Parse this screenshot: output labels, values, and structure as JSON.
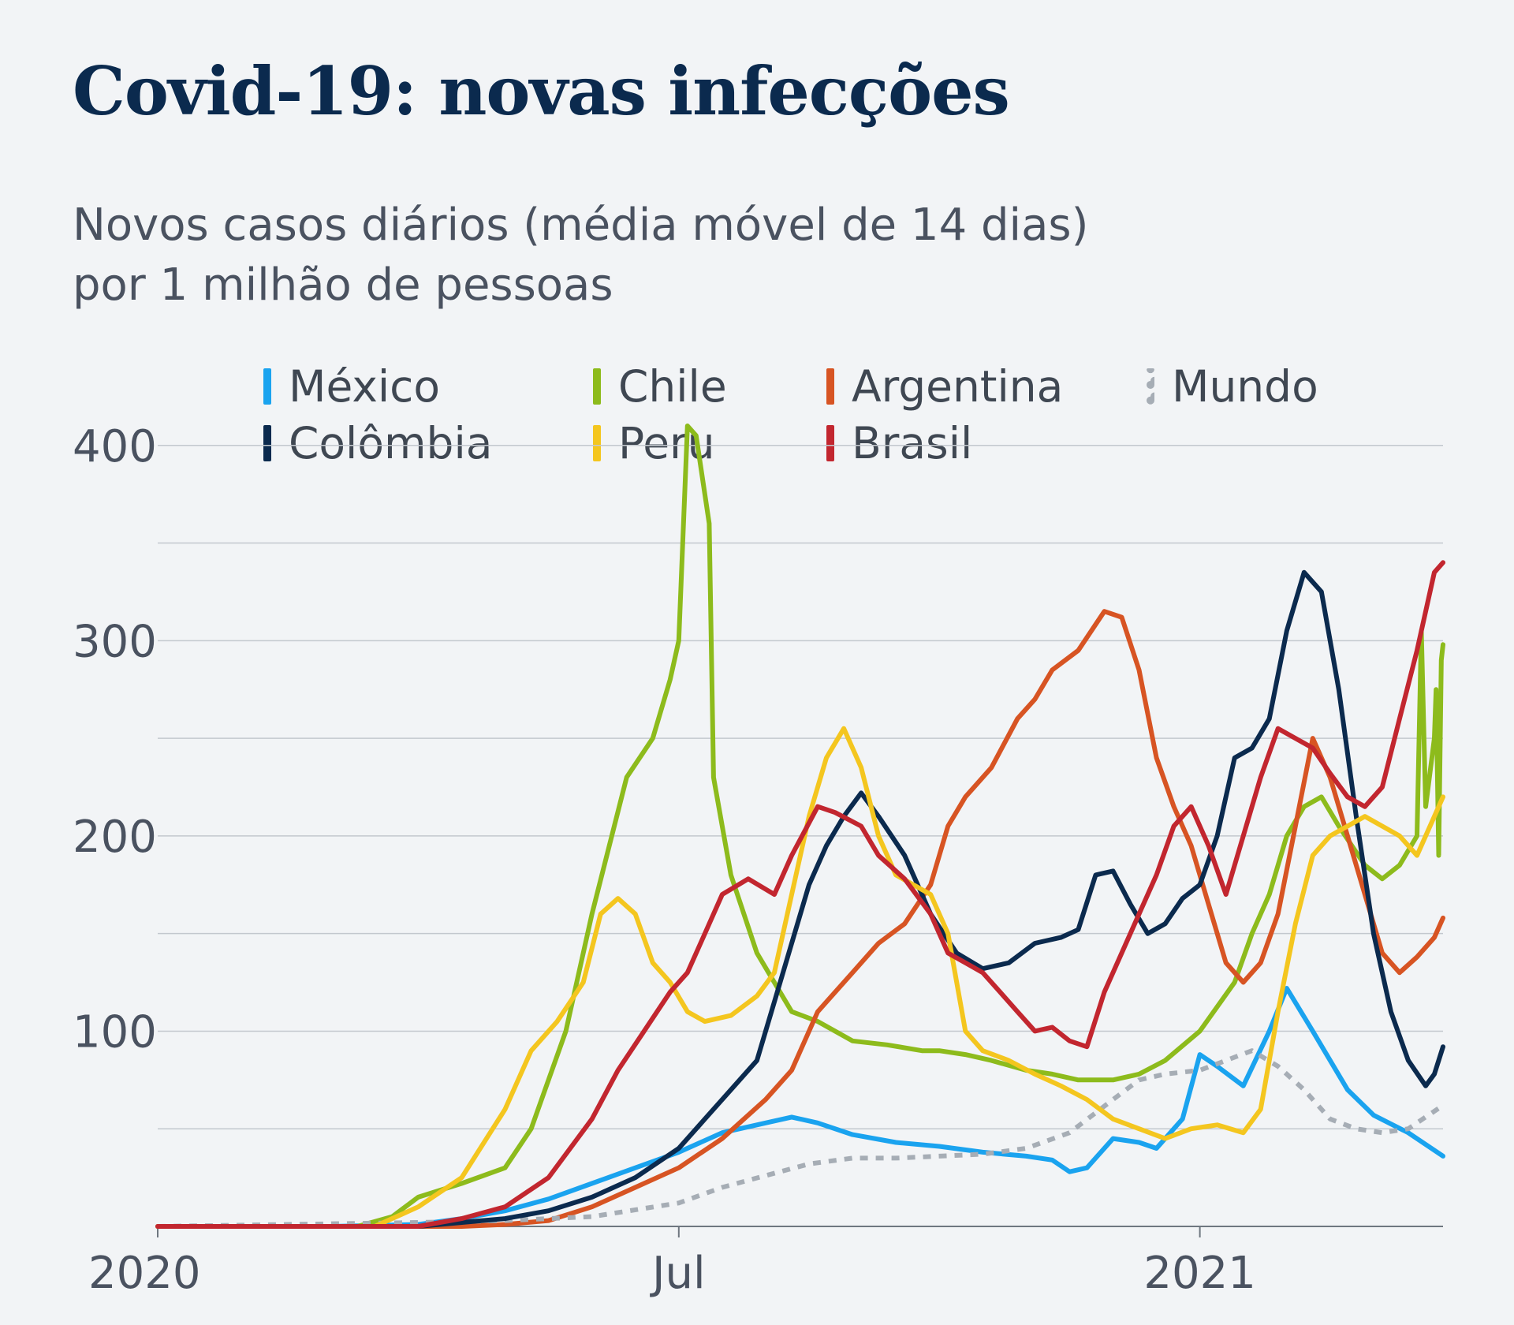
{
  "title": "Covid-19: novas infecções",
  "subtitle_line1": "Novos casos diários (média móvel de 14 dias)",
  "subtitle_line2": "por 1 milhão de pessoas",
  "chart_data": {
    "type": "line",
    "title": "Covid-19: novas infecções",
    "ylabel": "",
    "xlabel": "",
    "ylim": [
      0,
      410
    ],
    "xlim": [
      0,
      14.8
    ],
    "yticks": [
      100,
      200,
      300,
      400
    ],
    "gridlines": [
      50,
      100,
      150,
      200,
      250,
      300,
      350,
      400
    ],
    "xticks": [
      {
        "label": "2020",
        "x": 0
      },
      {
        "label": "Jul",
        "x": 6
      },
      {
        "label": "2021",
        "x": 12
      }
    ],
    "legend": "top",
    "series": [
      {
        "name": "México",
        "color": "#1aa3ef",
        "points": [
          [
            0,
            0
          ],
          [
            2,
            0
          ],
          [
            3,
            1
          ],
          [
            3.5,
            4
          ],
          [
            4,
            8
          ],
          [
            4.5,
            14
          ],
          [
            5,
            22
          ],
          [
            5.5,
            30
          ],
          [
            6,
            38
          ],
          [
            6.5,
            48
          ],
          [
            7,
            53
          ],
          [
            7.3,
            56
          ],
          [
            7.6,
            53
          ],
          [
            8,
            47
          ],
          [
            8.5,
            43
          ],
          [
            9,
            41
          ],
          [
            9.5,
            38
          ],
          [
            10,
            36
          ],
          [
            10.3,
            34
          ],
          [
            10.5,
            28
          ],
          [
            10.7,
            30
          ],
          [
            11,
            45
          ],
          [
            11.3,
            43
          ],
          [
            11.5,
            40
          ],
          [
            11.8,
            55
          ],
          [
            12,
            88
          ],
          [
            12.2,
            82
          ],
          [
            12.5,
            72
          ],
          [
            12.8,
            100
          ],
          [
            13,
            122
          ],
          [
            13.3,
            100
          ],
          [
            13.7,
            70
          ],
          [
            14,
            57
          ],
          [
            14.4,
            48
          ],
          [
            14.8,
            36
          ]
        ]
      },
      {
        "name": "Chile",
        "color": "#8dbb1c",
        "points": [
          [
            0,
            0
          ],
          [
            2.3,
            0
          ],
          [
            2.7,
            5
          ],
          [
            3,
            15
          ],
          [
            3.5,
            22
          ],
          [
            4,
            30
          ],
          [
            4.3,
            50
          ],
          [
            4.7,
            100
          ],
          [
            5,
            160
          ],
          [
            5.2,
            195
          ],
          [
            5.4,
            230
          ],
          [
            5.7,
            250
          ],
          [
            5.9,
            280
          ],
          [
            6,
            300
          ],
          [
            6.1,
            410
          ],
          [
            6.2,
            405
          ],
          [
            6.35,
            360
          ],
          [
            6.4,
            230
          ],
          [
            6.6,
            180
          ],
          [
            6.9,
            140
          ],
          [
            7.3,
            110
          ],
          [
            7.6,
            105
          ],
          [
            8,
            95
          ],
          [
            8.4,
            93
          ],
          [
            8.8,
            90
          ],
          [
            9,
            90
          ],
          [
            9.3,
            88
          ],
          [
            9.6,
            85
          ],
          [
            10,
            80
          ],
          [
            10.3,
            78
          ],
          [
            10.6,
            75
          ],
          [
            11,
            75
          ],
          [
            11.3,
            78
          ],
          [
            11.6,
            85
          ],
          [
            12,
            100
          ],
          [
            12.4,
            125
          ],
          [
            12.6,
            150
          ],
          [
            12.8,
            170
          ],
          [
            13,
            200
          ],
          [
            13.2,
            215
          ],
          [
            13.4,
            220
          ],
          [
            13.6,
            205
          ],
          [
            13.9,
            185
          ],
          [
            14.1,
            178
          ],
          [
            14.3,
            185
          ],
          [
            14.5,
            200
          ],
          [
            14.55,
            305
          ],
          [
            14.6,
            215
          ],
          [
            14.7,
            250
          ],
          [
            14.72,
            275
          ],
          [
            14.75,
            190
          ],
          [
            14.78,
            290
          ],
          [
            14.8,
            298
          ]
        ]
      },
      {
        "name": "Argentina",
        "color": "#d75423",
        "points": [
          [
            0,
            0
          ],
          [
            3.5,
            0
          ],
          [
            4,
            1
          ],
          [
            4.5,
            3
          ],
          [
            5,
            10
          ],
          [
            5.5,
            20
          ],
          [
            6,
            30
          ],
          [
            6.5,
            45
          ],
          [
            7,
            65
          ],
          [
            7.3,
            80
          ],
          [
            7.6,
            110
          ],
          [
            8,
            130
          ],
          [
            8.3,
            145
          ],
          [
            8.6,
            155
          ],
          [
            8.9,
            175
          ],
          [
            9.1,
            205
          ],
          [
            9.3,
            220
          ],
          [
            9.6,
            235
          ],
          [
            9.9,
            260
          ],
          [
            10.1,
            270
          ],
          [
            10.3,
            285
          ],
          [
            10.6,
            295
          ],
          [
            10.9,
            315
          ],
          [
            11.1,
            312
          ],
          [
            11.3,
            285
          ],
          [
            11.5,
            240
          ],
          [
            11.7,
            215
          ],
          [
            11.9,
            195
          ],
          [
            12.1,
            165
          ],
          [
            12.3,
            135
          ],
          [
            12.5,
            125
          ],
          [
            12.7,
            135
          ],
          [
            12.9,
            160
          ],
          [
            13.1,
            205
          ],
          [
            13.3,
            250
          ],
          [
            13.5,
            230
          ],
          [
            13.7,
            200
          ],
          [
            13.9,
            170
          ],
          [
            14.1,
            140
          ],
          [
            14.3,
            130
          ],
          [
            14.5,
            138
          ],
          [
            14.7,
            148
          ],
          [
            14.8,
            158
          ]
        ]
      },
      {
        "name": "Mundo",
        "color": "#a6adb5",
        "dashed": true,
        "points": [
          [
            0,
            0
          ],
          [
            1.5,
            1
          ],
          [
            3,
            2
          ],
          [
            4,
            3
          ],
          [
            5,
            5
          ],
          [
            6,
            12
          ],
          [
            6.5,
            20
          ],
          [
            7,
            26
          ],
          [
            7.5,
            32
          ],
          [
            8,
            35
          ],
          [
            8.5,
            35
          ],
          [
            9,
            36
          ],
          [
            9.5,
            37
          ],
          [
            10,
            40
          ],
          [
            10.5,
            48
          ],
          [
            11,
            65
          ],
          [
            11.3,
            75
          ],
          [
            11.6,
            78
          ],
          [
            12,
            80
          ],
          [
            12.3,
            85
          ],
          [
            12.6,
            90
          ],
          [
            12.9,
            82
          ],
          [
            13.2,
            70
          ],
          [
            13.5,
            55
          ],
          [
            13.8,
            50
          ],
          [
            14.1,
            48
          ],
          [
            14.4,
            50
          ],
          [
            14.8,
            62
          ]
        ]
      },
      {
        "name": "Colômbia",
        "color": "#0b2a4e",
        "points": [
          [
            0,
            0
          ],
          [
            3,
            0
          ],
          [
            3.5,
            2
          ],
          [
            4,
            4
          ],
          [
            4.5,
            8
          ],
          [
            5,
            15
          ],
          [
            5.5,
            25
          ],
          [
            6,
            40
          ],
          [
            6.3,
            55
          ],
          [
            6.6,
            70
          ],
          [
            6.9,
            85
          ],
          [
            7.1,
            115
          ],
          [
            7.3,
            145
          ],
          [
            7.5,
            175
          ],
          [
            7.7,
            195
          ],
          [
            7.9,
            210
          ],
          [
            8.1,
            222
          ],
          [
            8.3,
            210
          ],
          [
            8.6,
            190
          ],
          [
            8.9,
            160
          ],
          [
            9.2,
            140
          ],
          [
            9.5,
            132
          ],
          [
            9.8,
            135
          ],
          [
            10.1,
            145
          ],
          [
            10.4,
            148
          ],
          [
            10.6,
            152
          ],
          [
            10.8,
            180
          ],
          [
            11,
            182
          ],
          [
            11.2,
            165
          ],
          [
            11.4,
            150
          ],
          [
            11.6,
            155
          ],
          [
            11.8,
            168
          ],
          [
            12,
            175
          ],
          [
            12.2,
            200
          ],
          [
            12.4,
            240
          ],
          [
            12.6,
            245
          ],
          [
            12.8,
            260
          ],
          [
            13,
            305
          ],
          [
            13.2,
            335
          ],
          [
            13.4,
            325
          ],
          [
            13.6,
            275
          ],
          [
            13.8,
            210
          ],
          [
            14,
            150
          ],
          [
            14.2,
            110
          ],
          [
            14.4,
            85
          ],
          [
            14.6,
            72
          ],
          [
            14.7,
            78
          ],
          [
            14.8,
            92
          ]
        ]
      },
      {
        "name": "Peru",
        "color": "#f4c61f",
        "points": [
          [
            0,
            0
          ],
          [
            2.5,
            0
          ],
          [
            3,
            10
          ],
          [
            3.5,
            25
          ],
          [
            4,
            60
          ],
          [
            4.3,
            90
          ],
          [
            4.6,
            105
          ],
          [
            4.9,
            125
          ],
          [
            5.1,
            160
          ],
          [
            5.3,
            168
          ],
          [
            5.5,
            160
          ],
          [
            5.7,
            135
          ],
          [
            5.9,
            125
          ],
          [
            6.1,
            110
          ],
          [
            6.3,
            105
          ],
          [
            6.6,
            108
          ],
          [
            6.9,
            118
          ],
          [
            7.1,
            130
          ],
          [
            7.3,
            170
          ],
          [
            7.5,
            210
          ],
          [
            7.7,
            240
          ],
          [
            7.9,
            255
          ],
          [
            8.1,
            235
          ],
          [
            8.3,
            200
          ],
          [
            8.5,
            180
          ],
          [
            8.7,
            175
          ],
          [
            8.9,
            170
          ],
          [
            9.1,
            150
          ],
          [
            9.3,
            100
          ],
          [
            9.5,
            90
          ],
          [
            9.8,
            85
          ],
          [
            10.1,
            78
          ],
          [
            10.4,
            72
          ],
          [
            10.7,
            65
          ],
          [
            11,
            55
          ],
          [
            11.3,
            50
          ],
          [
            11.6,
            45
          ],
          [
            11.9,
            50
          ],
          [
            12.2,
            52
          ],
          [
            12.5,
            48
          ],
          [
            12.7,
            60
          ],
          [
            12.9,
            110
          ],
          [
            13.1,
            155
          ],
          [
            13.3,
            190
          ],
          [
            13.5,
            200
          ],
          [
            13.7,
            205
          ],
          [
            13.9,
            210
          ],
          [
            14.1,
            205
          ],
          [
            14.3,
            200
          ],
          [
            14.5,
            190
          ],
          [
            14.7,
            210
          ],
          [
            14.8,
            220
          ]
        ]
      },
      {
        "name": "Brasil",
        "color": "#c2262f",
        "points": [
          [
            0,
            0
          ],
          [
            3,
            0
          ],
          [
            3.5,
            4
          ],
          [
            4,
            10
          ],
          [
            4.5,
            25
          ],
          [
            5,
            55
          ],
          [
            5.3,
            80
          ],
          [
            5.6,
            100
          ],
          [
            5.9,
            120
          ],
          [
            6.1,
            130
          ],
          [
            6.3,
            150
          ],
          [
            6.5,
            170
          ],
          [
            6.8,
            178
          ],
          [
            7.1,
            170
          ],
          [
            7.3,
            190
          ],
          [
            7.6,
            215
          ],
          [
            7.8,
            212
          ],
          [
            8.1,
            205
          ],
          [
            8.3,
            190
          ],
          [
            8.6,
            178
          ],
          [
            8.9,
            160
          ],
          [
            9.1,
            140
          ],
          [
            9.3,
            135
          ],
          [
            9.5,
            130
          ],
          [
            9.7,
            120
          ],
          [
            9.9,
            110
          ],
          [
            10.1,
            100
          ],
          [
            10.3,
            102
          ],
          [
            10.5,
            95
          ],
          [
            10.7,
            92
          ],
          [
            10.9,
            120
          ],
          [
            11.1,
            140
          ],
          [
            11.3,
            160
          ],
          [
            11.5,
            180
          ],
          [
            11.7,
            205
          ],
          [
            11.9,
            215
          ],
          [
            12.1,
            195
          ],
          [
            12.3,
            170
          ],
          [
            12.5,
            200
          ],
          [
            12.7,
            230
          ],
          [
            12.9,
            255
          ],
          [
            13.1,
            250
          ],
          [
            13.3,
            245
          ],
          [
            13.5,
            232
          ],
          [
            13.7,
            220
          ],
          [
            13.9,
            215
          ],
          [
            14.1,
            225
          ],
          [
            14.3,
            260
          ],
          [
            14.5,
            295
          ],
          [
            14.7,
            335
          ],
          [
            14.8,
            340
          ]
        ]
      }
    ]
  }
}
